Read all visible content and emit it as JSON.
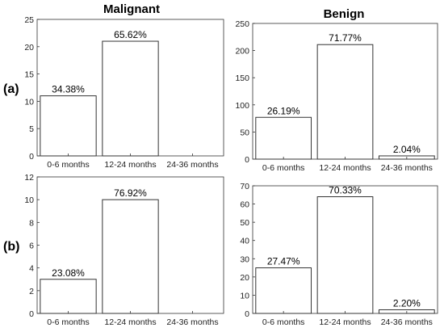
{
  "column_titles": [
    "Malignant",
    "Benign"
  ],
  "row_labels": [
    "(a)",
    "(b)"
  ],
  "chart_data": [
    {
      "type": "bar",
      "row": "(a)",
      "column": "Malignant",
      "categories": [
        "0-6 months",
        "12-24 months",
        "24-36 months"
      ],
      "values": [
        11,
        21,
        0
      ],
      "data_labels": [
        "34.38%",
        "65.62%",
        ""
      ],
      "ylim": [
        0,
        25
      ],
      "yticks": [
        0,
        5,
        10,
        15,
        20,
        25
      ],
      "grid": false
    },
    {
      "type": "bar",
      "row": "(a)",
      "column": "Benign",
      "categories": [
        "0-6 months",
        "12-24 months",
        "24-36 months"
      ],
      "values": [
        77,
        211,
        6
      ],
      "data_labels": [
        "26.19%",
        "71.77%",
        "2.04%"
      ],
      "ylim": [
        0,
        250
      ],
      "yticks": [
        0,
        50,
        100,
        150,
        200,
        250
      ],
      "grid": false
    },
    {
      "type": "bar",
      "row": "(b)",
      "column": "Malignant",
      "categories": [
        "0-6 months",
        "12-24 months",
        "24-36 months"
      ],
      "values": [
        3,
        10,
        0
      ],
      "data_labels": [
        "23.08%",
        "76.92%",
        ""
      ],
      "ylim": [
        0,
        12
      ],
      "yticks": [
        0,
        2,
        4,
        6,
        8,
        10,
        12
      ],
      "grid": false
    },
    {
      "type": "bar",
      "row": "(b)",
      "column": "Benign",
      "categories": [
        "0-6 months",
        "12-24 months",
        "24-36 months"
      ],
      "values": [
        25,
        64,
        2
      ],
      "data_labels": [
        "27.47%",
        "70.33%",
        "2.20%"
      ],
      "ylim": [
        0,
        70
      ],
      "yticks": [
        0,
        10,
        20,
        30,
        40,
        50,
        60,
        70
      ],
      "grid": false
    }
  ]
}
